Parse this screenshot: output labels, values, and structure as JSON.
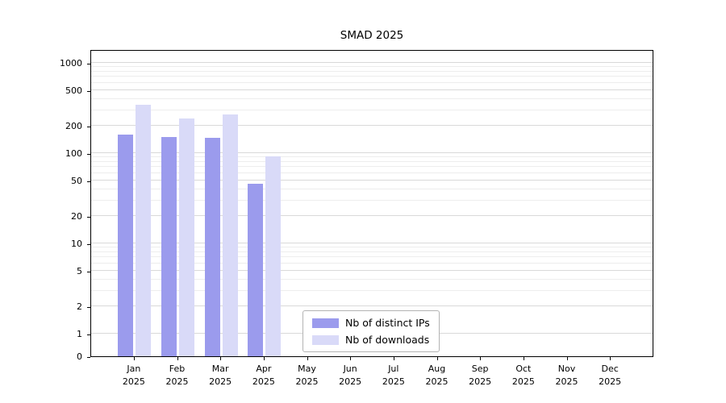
{
  "chart_data": {
    "type": "bar",
    "title": "SMAD 2025",
    "categories": [
      "Jan 2025",
      "Feb 2025",
      "Mar 2025",
      "Apr 2025",
      "May 2025",
      "Jun 2025",
      "Jul 2025",
      "Aug 2025",
      "Sep 2025",
      "Oct 2025",
      "Nov 2025",
      "Dec 2025"
    ],
    "series": [
      {
        "name": "Nb of distinct IPs",
        "color": "#9b9bed",
        "values": [
          160,
          150,
          148,
          46,
          0,
          0,
          0,
          0,
          0,
          0,
          0,
          0
        ]
      },
      {
        "name": "Nb of downloads",
        "color": "#d9daf8",
        "values": [
          340,
          240,
          270,
          93,
          0,
          0,
          0,
          0,
          0,
          0,
          0,
          0
        ]
      }
    ],
    "yscale": "symlog",
    "yticks": [
      0,
      1,
      2,
      5,
      10,
      20,
      50,
      100,
      200,
      500,
      1000
    ],
    "ylim": [
      0,
      1400
    ],
    "grid": true,
    "legend_position": "lower center",
    "background": "#ffffff",
    "grid_major_color": "#d9d9d9",
    "grid_minor_color": "#ededed",
    "axis_color": "#000000"
  }
}
